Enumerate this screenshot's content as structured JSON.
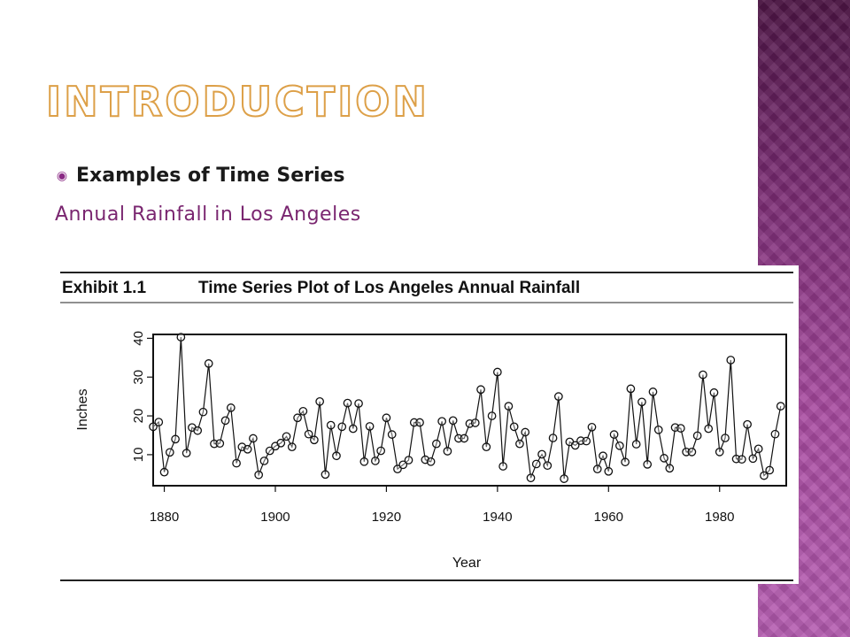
{
  "slide": {
    "title": "Introduction",
    "bullet_icon": "target-bullet-icon",
    "bullet_text": "Examples of Time Series",
    "subtitle": "Annual Rainfall in Los Angeles",
    "colors": {
      "title_outline": "#dda048",
      "subtitle": "#7a2670",
      "sidebar_top": "#4e1546",
      "sidebar_bottom": "#b45bb0"
    }
  },
  "chart_data": {
    "type": "line",
    "exhibit_label": "Exhibit 1.1",
    "title": "Time Series Plot of Los Angeles Annual Rainfall",
    "xlabel": "Year",
    "ylabel": "Inches",
    "xlim": [
      1878,
      1992
    ],
    "ylim": [
      2,
      41
    ],
    "x_ticks": [
      1880,
      1900,
      1920,
      1940,
      1960,
      1980
    ],
    "y_ticks": [
      10,
      20,
      30,
      40
    ],
    "marker": "open-circle",
    "grid": false,
    "x_start": 1878,
    "series": [
      {
        "values": [
          17.2,
          18.4,
          5.5,
          10.6,
          14.0,
          40.3,
          10.4,
          17.0,
          16.2,
          21.0,
          33.5,
          12.8,
          12.9,
          18.8,
          22.1,
          7.8,
          12.0,
          11.4,
          14.2,
          4.8,
          8.4,
          11.0,
          12.2,
          13.0,
          14.7,
          12.0,
          19.5,
          21.2,
          15.3,
          13.8,
          23.7,
          4.9,
          17.6,
          9.7,
          17.2,
          23.3,
          16.7,
          23.2,
          8.2,
          17.3,
          8.4,
          11.0,
          19.5,
          15.2,
          6.3,
          7.4,
          8.6,
          18.3,
          18.3,
          8.7,
          8.2,
          12.8,
          18.6,
          10.9,
          18.8,
          14.2,
          14.2,
          18.0,
          18.2,
          26.8,
          12.0,
          20.0,
          31.3,
          7.0,
          22.5,
          17.2,
          12.8,
          15.8,
          4.0,
          7.6,
          10.1,
          7.2,
          14.3,
          25.0,
          3.8,
          13.3,
          12.4,
          13.6,
          13.5,
          17.1,
          6.3,
          9.7,
          5.7,
          15.2,
          12.3,
          8.1,
          27.0,
          12.7,
          23.6,
          7.5,
          26.2,
          16.4,
          9.1,
          6.5,
          17.0,
          16.8,
          10.7,
          10.7,
          14.9,
          30.6,
          16.7,
          26.0,
          10.7,
          14.3,
          34.4,
          8.9,
          8.8,
          17.8,
          9.0,
          11.5,
          4.6,
          6.0,
          15.3,
          22.5
        ]
      }
    ]
  }
}
